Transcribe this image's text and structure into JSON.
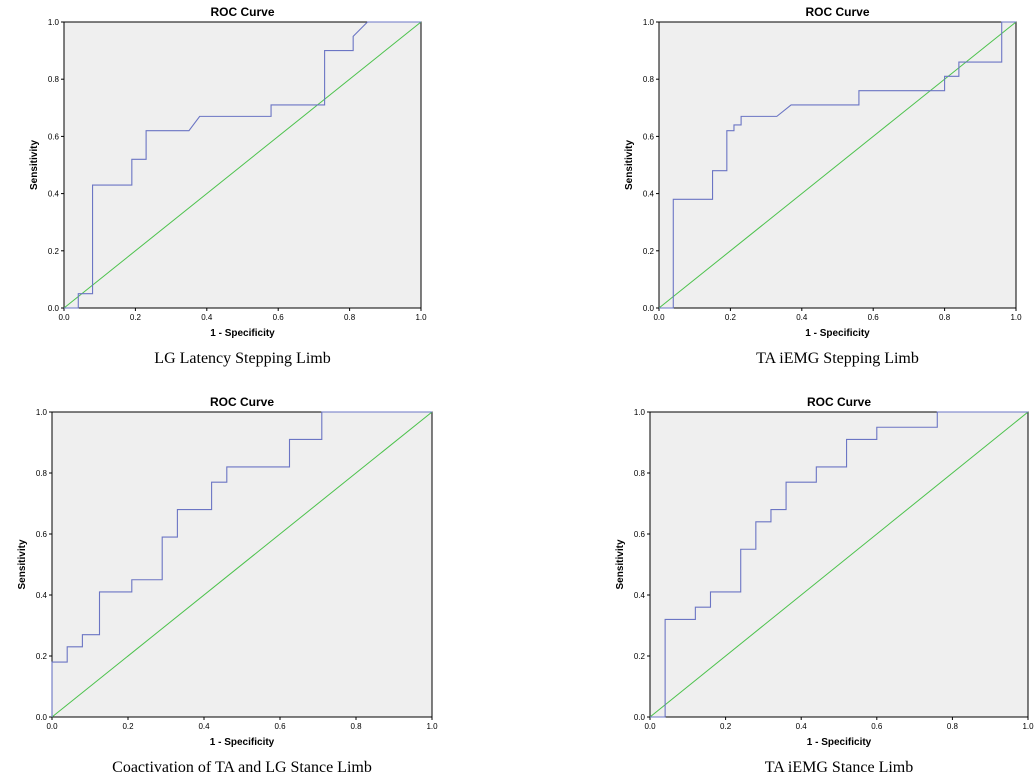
{
  "colors": {
    "roc_curve": "#6b75c4",
    "reference_line": "#4cc24c",
    "plot_background": "#efefef",
    "frame": "#000000"
  },
  "chart_data": [
    {
      "type": "line",
      "title": "ROC Curve",
      "xlabel": "1 - Specificity",
      "ylabel": "Sensitivity",
      "caption": "LG Latency Stepping Limb",
      "xlim": [
        0,
        1
      ],
      "ylim": [
        0,
        1
      ],
      "xticks": [
        "0.0",
        "0.2",
        "0.4",
        "0.6",
        "0.8",
        "1.0"
      ],
      "yticks": [
        "0.0",
        "0.2",
        "0.4",
        "0.6",
        "0.8",
        "1.0"
      ],
      "grid": false,
      "series": [
        {
          "x": [
            0,
            0.04,
            0.04,
            0.08,
            0.08,
            0.19,
            0.19,
            0.23,
            0.23,
            0.35,
            0.38,
            0.58,
            0.58,
            0.73,
            0.73,
            0.81,
            0.81,
            0.85,
            1.0
          ],
          "y": [
            0,
            0,
            0.05,
            0.05,
            0.43,
            0.43,
            0.52,
            0.52,
            0.62,
            0.62,
            0.67,
            0.67,
            0.71,
            0.71,
            0.9,
            0.9,
            0.95,
            1.0,
            1.0
          ]
        },
        {
          "x": [
            0,
            1
          ],
          "y": [
            0,
            1
          ]
        }
      ]
    },
    {
      "type": "line",
      "title": "ROC Curve",
      "xlabel": "1 - Specificity",
      "ylabel": "Sensitivity",
      "caption": "TA iEMG Stepping Limb",
      "xlim": [
        0,
        1
      ],
      "ylim": [
        0,
        1
      ],
      "xticks": [
        "0.0",
        "0.2",
        "0.4",
        "0.6",
        "0.8",
        "1.0"
      ],
      "yticks": [
        "0.0",
        "0.2",
        "0.4",
        "0.6",
        "0.8",
        "1.0"
      ],
      "grid": false,
      "series": [
        {
          "x": [
            0,
            0.04,
            0.04,
            0.15,
            0.15,
            0.19,
            0.19,
            0.21,
            0.21,
            0.23,
            0.23,
            0.33,
            0.37,
            0.56,
            0.56,
            0.8,
            0.8,
            0.84,
            0.84,
            0.96,
            0.96,
            1.0
          ],
          "y": [
            0,
            0,
            0.38,
            0.38,
            0.48,
            0.48,
            0.62,
            0.62,
            0.64,
            0.64,
            0.67,
            0.67,
            0.71,
            0.71,
            0.76,
            0.76,
            0.81,
            0.81,
            0.86,
            0.86,
            1.0,
            1.0
          ]
        },
        {
          "x": [
            0,
            1
          ],
          "y": [
            0,
            1
          ]
        }
      ]
    },
    {
      "type": "line",
      "title": "ROC Curve",
      "xlabel": "1 - Specificity",
      "ylabel": "Sensitivity",
      "caption": "Coactivation of TA and LG Stance Limb",
      "xlim": [
        0,
        1
      ],
      "ylim": [
        0,
        1
      ],
      "xticks": [
        "0.0",
        "0.2",
        "0.4",
        "0.6",
        "0.8",
        "1.0"
      ],
      "yticks": [
        "0.0",
        "0.2",
        "0.4",
        "0.6",
        "0.8",
        "1.0"
      ],
      "grid": false,
      "series": [
        {
          "x": [
            0,
            0,
            0.04,
            0.04,
            0.08,
            0.08,
            0.125,
            0.125,
            0.21,
            0.21,
            0.29,
            0.29,
            0.33,
            0.33,
            0.42,
            0.42,
            0.46,
            0.46,
            0.625,
            0.625,
            0.71,
            0.71,
            1.0
          ],
          "y": [
            0,
            0.18,
            0.18,
            0.23,
            0.23,
            0.27,
            0.27,
            0.41,
            0.41,
            0.45,
            0.45,
            0.59,
            0.59,
            0.68,
            0.68,
            0.77,
            0.77,
            0.82,
            0.82,
            0.91,
            0.91,
            1.0,
            1.0
          ]
        },
        {
          "x": [
            0,
            1
          ],
          "y": [
            0,
            1
          ]
        }
      ]
    },
    {
      "type": "line",
      "title": "ROC Curve",
      "xlabel": "1 - Specificity",
      "ylabel": "Sensitivity",
      "caption": "TA iEMG Stance Limb",
      "xlim": [
        0,
        1
      ],
      "ylim": [
        0,
        1
      ],
      "xticks": [
        "0.0",
        "0.2",
        "0.4",
        "0.6",
        "0.8",
        "1.0"
      ],
      "yticks": [
        "0.0",
        "0.2",
        "0.4",
        "0.6",
        "0.8",
        "1.0"
      ],
      "grid": false,
      "series": [
        {
          "x": [
            0,
            0.04,
            0.04,
            0.12,
            0.12,
            0.16,
            0.16,
            0.24,
            0.24,
            0.28,
            0.28,
            0.32,
            0.32,
            0.36,
            0.36,
            0.44,
            0.44,
            0.52,
            0.52,
            0.6,
            0.6,
            0.76,
            0.76,
            1.0
          ],
          "y": [
            0,
            0,
            0.32,
            0.32,
            0.36,
            0.36,
            0.41,
            0.41,
            0.55,
            0.55,
            0.64,
            0.64,
            0.68,
            0.68,
            0.77,
            0.77,
            0.82,
            0.82,
            0.91,
            0.91,
            0.95,
            0.95,
            1.0,
            1.0
          ]
        },
        {
          "x": [
            0,
            1
          ],
          "y": [
            0,
            1
          ]
        }
      ]
    }
  ]
}
